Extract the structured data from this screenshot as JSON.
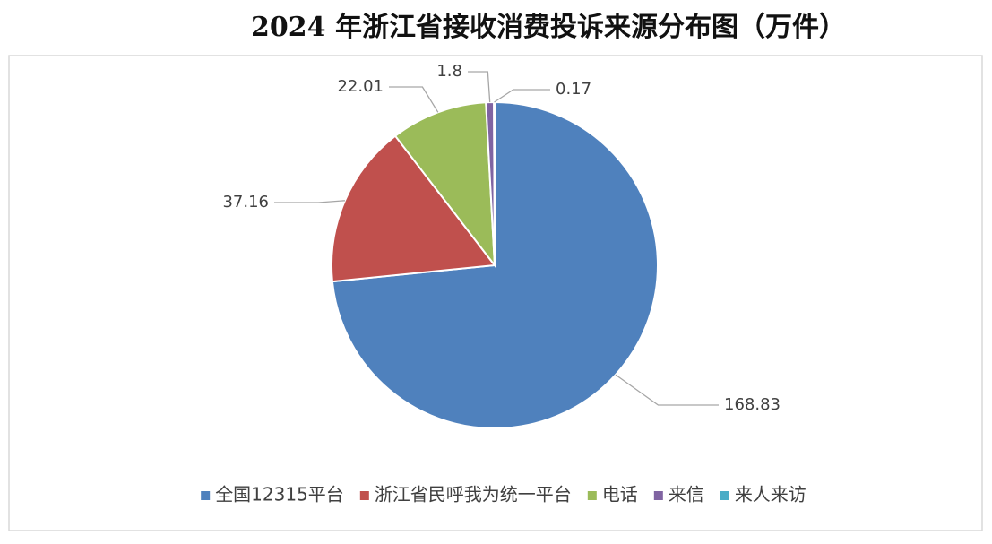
{
  "chart_data": {
    "type": "pie",
    "title": "2024 年浙江省接收消费投诉来源分布图（万件）",
    "categories": [
      "全国12315平台",
      "浙江省民呼我为统一平台",
      "电话",
      "来信",
      "来人来访"
    ],
    "values": [
      168.83,
      37.16,
      22.01,
      1.8,
      0.17
    ],
    "colors": [
      "#4f81bd",
      "#c0504d",
      "#9bbb59",
      "#8064a2",
      "#4bacc6"
    ],
    "legend": "bottom"
  }
}
